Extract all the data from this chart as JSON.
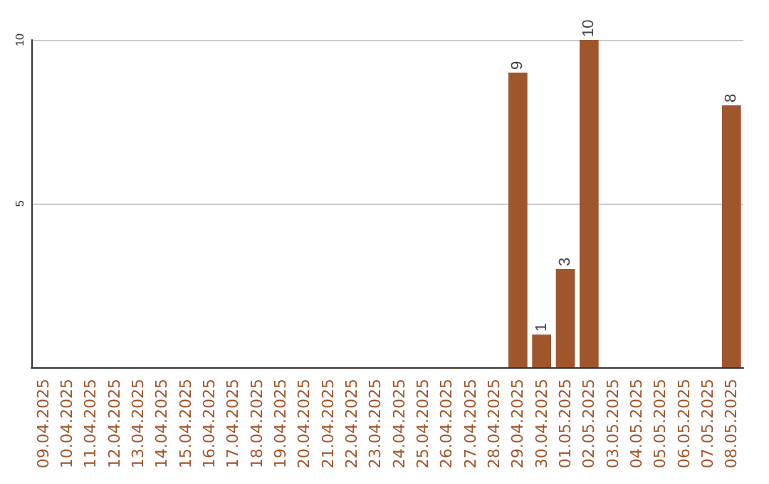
{
  "chart_data": {
    "type": "bar",
    "categories": [
      "09.04.2025",
      "10.04.2025",
      "11.04.2025",
      "12.04.2025",
      "13.04.2025",
      "14.04.2025",
      "15.04.2025",
      "16.04.2025",
      "17.04.2025",
      "18.04.2025",
      "19.04.2025",
      "20.04.2025",
      "21.04.2025",
      "22.04.2025",
      "23.04.2025",
      "24.04.2025",
      "25.04.2025",
      "26.04.2025",
      "27.04.2025",
      "28.04.2025",
      "29.04.2025",
      "30.04.2025",
      "01.05.2025",
      "02.05.2025",
      "03.05.2025",
      "04.05.2025",
      "05.05.2025",
      "06.05.2025",
      "07.05.2025",
      "08.05.2025"
    ],
    "values": [
      0,
      0,
      0,
      0,
      0,
      0,
      0,
      0,
      0,
      0,
      0,
      0,
      0,
      0,
      0,
      0,
      0,
      0,
      0,
      0,
      9,
      1,
      3,
      10,
      0,
      0,
      0,
      0,
      0,
      8
    ],
    "value_labels": [
      null,
      null,
      null,
      null,
      null,
      null,
      null,
      null,
      null,
      null,
      null,
      null,
      null,
      null,
      null,
      null,
      null,
      null,
      null,
      null,
      "9",
      "1",
      "3",
      "10",
      null,
      null,
      null,
      null,
      null,
      "8"
    ],
    "color": "#a0562c",
    "ylim": [
      0,
      10
    ],
    "yticks": [
      5,
      10
    ],
    "grid": "y"
  }
}
